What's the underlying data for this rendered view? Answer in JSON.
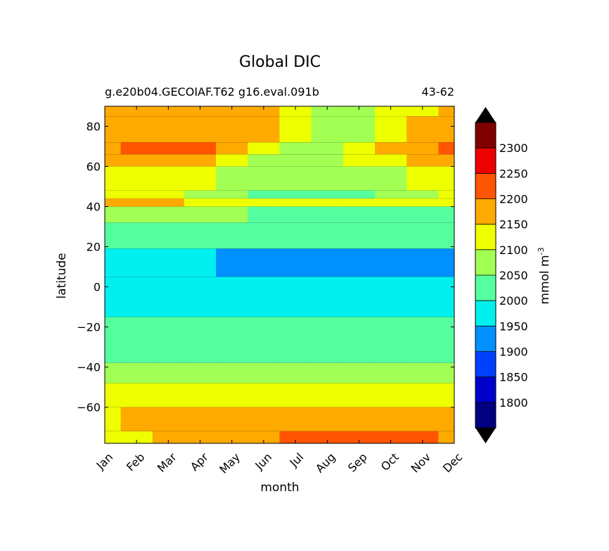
{
  "header": {
    "title": "Global DIC",
    "run_id": "g.e20b04.GECOIAF.T62 g16.eval.091b",
    "years": "43-62"
  },
  "colorbar": {
    "label_text": "mmol m",
    "label_exponent": "-3",
    "levels": [
      1750,
      1800,
      1850,
      1900,
      1950,
      2000,
      2050,
      2100,
      2150,
      2200,
      2250,
      2300,
      2350
    ],
    "tick_labels": [
      "1800",
      "1850",
      "1900",
      "1950",
      "2000",
      "2050",
      "2100",
      "2150",
      "2200",
      "2250",
      "2300"
    ],
    "colors": [
      "#000080",
      "#0000cd",
      "#0040ff",
      "#0090ff",
      "#00f0f0",
      "#55ff9f",
      "#a2ff54",
      "#eeff00",
      "#ffaa00",
      "#ff5500",
      "#ee0000",
      "#800000"
    ],
    "under_color": "#000000",
    "over_color": "#000000"
  },
  "chart_data": {
    "type": "contour",
    "title": "Global DIC",
    "subtitle": "g.e20b04.GECOIAF.T62 g16.eval.091b",
    "years": "43-62",
    "xlabel": "month",
    "ylabel": "latitude",
    "units": "mmol m-3",
    "x_categories": [
      "Jan",
      "Feb",
      "Mar",
      "Apr",
      "May",
      "Jun",
      "Jul",
      "Aug",
      "Sep",
      "Oct",
      "Nov",
      "Dec"
    ],
    "xlim": [
      1,
      12
    ],
    "ylim": [
      -78,
      90
    ],
    "y_ticks": [
      -60,
      -40,
      -20,
      0,
      20,
      40,
      60,
      80
    ],
    "y_tick_labels": [
      "−60",
      "−40",
      "−20",
      "0",
      "20",
      "40",
      "60",
      "80"
    ],
    "grid": false,
    "colorbar_position": "right",
    "latitude_bands": [
      {
        "lat": [
          85,
          90
        ],
        "values": [
          2175,
          2175,
          2175,
          2175,
          2175,
          2175,
          2125,
          2075,
          2075,
          2125,
          2125,
          2175
        ]
      },
      {
        "lat": [
          72,
          85
        ],
        "values": [
          2175,
          2175,
          2175,
          2175,
          2175,
          2175,
          2125,
          2075,
          2075,
          2125,
          2175,
          2175
        ]
      },
      {
        "lat": [
          66,
          72
        ],
        "values": [
          2175,
          2225,
          2225,
          2225,
          2175,
          2125,
          2075,
          2075,
          2125,
          2175,
          2175,
          2225
        ]
      },
      {
        "lat": [
          60,
          66
        ],
        "values": [
          2175,
          2175,
          2175,
          2175,
          2125,
          2075,
          2075,
          2075,
          2125,
          2125,
          2175,
          2175
        ]
      },
      {
        "lat": [
          48,
          60
        ],
        "values": [
          2125,
          2125,
          2125,
          2125,
          2075,
          2075,
          2075,
          2075,
          2075,
          2075,
          2125,
          2125
        ]
      },
      {
        "lat": [
          44,
          48
        ],
        "values": [
          2125,
          2125,
          2125,
          2075,
          2075,
          2025,
          2025,
          2025,
          2025,
          2075,
          2075,
          2125
        ]
      },
      {
        "lat": [
          40,
          44
        ],
        "values": [
          2175,
          2175,
          2175,
          2125,
          2125,
          2125,
          2125,
          2125,
          2125,
          2125,
          2125,
          2125
        ]
      },
      {
        "lat": [
          32,
          40
        ],
        "values": [
          2075,
          2075,
          2075,
          2075,
          2075,
          2025,
          2025,
          2025,
          2025,
          2025,
          2025,
          2025
        ]
      },
      {
        "lat": [
          19,
          32
        ],
        "values": [
          2025,
          2025,
          2025,
          2025,
          2025,
          2025,
          2025,
          2025,
          2025,
          2025,
          2025,
          2025
        ]
      },
      {
        "lat": [
          5,
          19
        ],
        "values": [
          1975,
          1975,
          1975,
          1975,
          1925,
          1925,
          1925,
          1925,
          1925,
          1925,
          1925,
          1925
        ]
      },
      {
        "lat": [
          -15,
          5
        ],
        "values": [
          1975,
          1975,
          1975,
          1975,
          1975,
          1975,
          1975,
          1975,
          1975,
          1975,
          1975,
          1975
        ]
      },
      {
        "lat": [
          -38,
          -15
        ],
        "values": [
          2025,
          2025,
          2025,
          2025,
          2025,
          2025,
          2025,
          2025,
          2025,
          2025,
          2025,
          2025
        ]
      },
      {
        "lat": [
          -48,
          -38
        ],
        "values": [
          2075,
          2075,
          2075,
          2075,
          2075,
          2075,
          2075,
          2075,
          2075,
          2075,
          2075,
          2075
        ]
      },
      {
        "lat": [
          -60,
          -48
        ],
        "values": [
          2125,
          2125,
          2125,
          2125,
          2125,
          2125,
          2125,
          2125,
          2125,
          2125,
          2125,
          2125
        ]
      },
      {
        "lat": [
          -72,
          -60
        ],
        "values": [
          2125,
          2175,
          2175,
          2175,
          2175,
          2175,
          2175,
          2175,
          2175,
          2175,
          2175,
          2175
        ]
      },
      {
        "lat": [
          -78,
          -72
        ],
        "values": [
          2125,
          2125,
          2175,
          2175,
          2175,
          2175,
          2225,
          2225,
          2225,
          2225,
          2225,
          2175
        ]
      }
    ]
  }
}
